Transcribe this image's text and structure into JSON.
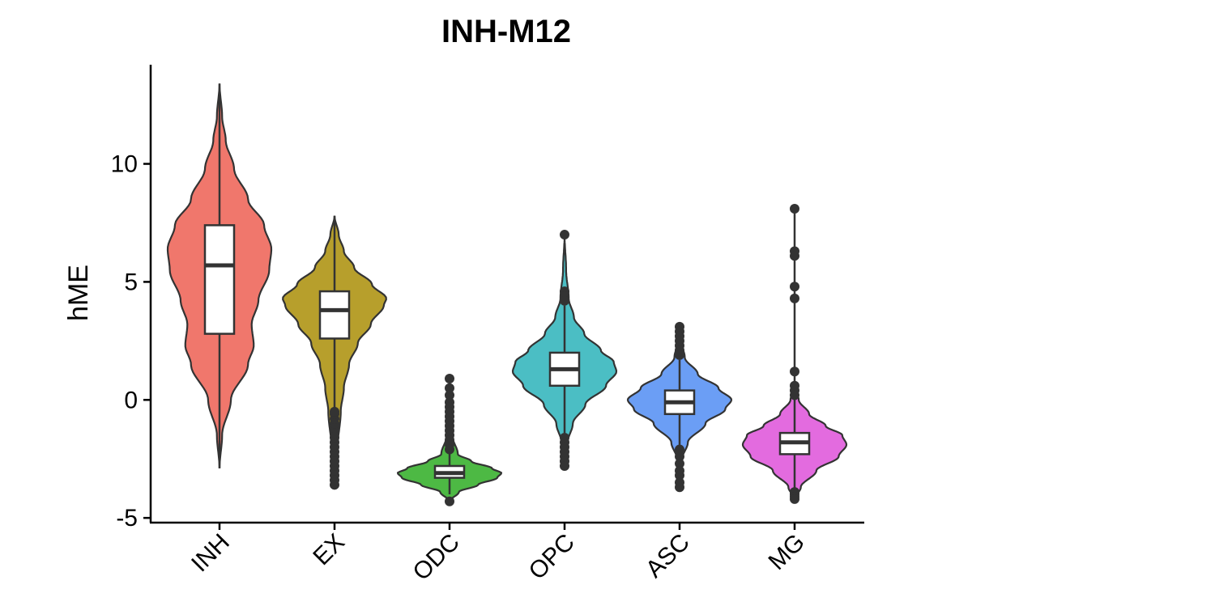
{
  "chart_data": {
    "type": "violin",
    "title": "INH-M12",
    "xlabel": "",
    "ylabel": "hME",
    "ylim": [
      -5.2,
      14.2
    ],
    "yticks": [
      -5,
      0,
      5,
      10
    ],
    "grid": false,
    "legend": "none",
    "categories": [
      "INH",
      "EX",
      "ODC",
      "OPC",
      "ASC",
      "MG"
    ],
    "colors": [
      "#F0776C",
      "#B79F2C",
      "#4DB944",
      "#4BBEC4",
      "#6B9EF5",
      "#E36BDF"
    ],
    "series": [
      {
        "category": "INH",
        "box": {
          "q1": 2.8,
          "median": 5.7,
          "q3": 7.4,
          "whisker_low": -2.9,
          "whisker_high": 13.4
        },
        "density_y": [
          -2.9,
          -1.5,
          0.0,
          1.5,
          2.3,
          3.2,
          4.2,
          5.5,
          6.4,
          7.4,
          8.5,
          9.8,
          11.0,
          12.0,
          13.4
        ],
        "density_w": [
          0.0,
          0.05,
          0.22,
          0.55,
          0.66,
          0.62,
          0.75,
          0.96,
          1.0,
          0.86,
          0.55,
          0.28,
          0.12,
          0.05,
          0.0
        ],
        "outliers": []
      },
      {
        "category": "EX",
        "box": {
          "q1": 2.6,
          "median": 3.8,
          "q3": 4.6,
          "whisker_low": -0.4,
          "whisker_high": 7.8
        },
        "density_y": [
          -3.7,
          -2.0,
          -0.5,
          0.5,
          1.5,
          2.4,
          3.2,
          4.0,
          4.3,
          4.9,
          5.6,
          6.3,
          7.0,
          7.8
        ],
        "density_w": [
          0.0,
          0.06,
          0.12,
          0.18,
          0.28,
          0.45,
          0.7,
          0.95,
          1.0,
          0.72,
          0.38,
          0.18,
          0.08,
          0.0
        ],
        "outliers": [
          -3.6,
          -3.4,
          -3.2,
          -3.0,
          -2.8,
          -2.6,
          -2.4,
          -2.2,
          -2.0,
          -1.8,
          -1.6,
          -1.4,
          -1.2,
          -1.0,
          -0.8,
          -0.6,
          -0.5
        ]
      },
      {
        "category": "ODC",
        "box": {
          "q1": -3.3,
          "median": -3.1,
          "q3": -2.8,
          "whisker_low": -4.0,
          "whisker_high": -2.2
        },
        "density_y": [
          -4.3,
          -3.9,
          -3.6,
          -3.3,
          -3.1,
          -2.9,
          -2.6,
          -2.3,
          -1.5,
          0.0,
          0.9
        ],
        "density_w": [
          0.0,
          0.18,
          0.55,
          0.92,
          1.0,
          0.82,
          0.42,
          0.16,
          0.05,
          0.02,
          0.0
        ],
        "outliers": [
          -4.3,
          0.9,
          0.5,
          0.2,
          -0.1,
          -0.3,
          -0.5,
          -0.7,
          -0.9,
          -1.1,
          -1.3,
          -1.5,
          -1.7,
          -1.9,
          -2.1
        ]
      },
      {
        "category": "OPC",
        "box": {
          "q1": 0.6,
          "median": 1.3,
          "q3": 2.0,
          "whisker_low": -1.4,
          "whisker_high": 4.0
        },
        "density_y": [
          -2.9,
          -1.8,
          -1.0,
          -0.2,
          0.6,
          1.2,
          1.6,
          2.1,
          2.8,
          3.5,
          4.3,
          5.5,
          7.0
        ],
        "density_w": [
          0.0,
          0.06,
          0.16,
          0.4,
          0.8,
          1.0,
          0.95,
          0.7,
          0.38,
          0.18,
          0.08,
          0.03,
          0.0
        ],
        "outliers": [
          7.0,
          4.6,
          4.4,
          4.2,
          -1.6,
          -1.8,
          -2.0,
          -2.2,
          -2.4,
          -2.6,
          -2.8
        ]
      },
      {
        "category": "ASC",
        "box": {
          "q1": -0.6,
          "median": -0.1,
          "q3": 0.4,
          "whisker_low": -1.9,
          "whisker_high": 1.7
        },
        "density_y": [
          -3.8,
          -2.5,
          -1.8,
          -1.0,
          -0.4,
          0.0,
          0.5,
          1.1,
          1.8,
          2.5,
          3.2
        ],
        "density_w": [
          0.0,
          0.05,
          0.16,
          0.5,
          0.88,
          1.0,
          0.75,
          0.35,
          0.1,
          0.03,
          0.0
        ],
        "outliers": [
          3.1,
          2.9,
          2.7,
          2.5,
          2.3,
          2.1,
          1.9,
          -2.1,
          -2.4,
          -2.7,
          -3.0,
          -3.2,
          -3.5,
          -3.7
        ]
      },
      {
        "category": "MG",
        "box": {
          "q1": -2.3,
          "median": -1.8,
          "q3": -1.4,
          "whisker_low": -3.9,
          "whisker_high": 8.1
        },
        "density_y": [
          -4.2,
          -3.7,
          -3.0,
          -2.4,
          -1.9,
          -1.5,
          -1.1,
          -0.6,
          0.0,
          0.5
        ],
        "density_w": [
          0.0,
          0.12,
          0.42,
          0.85,
          1.0,
          0.92,
          0.6,
          0.28,
          0.08,
          0.0
        ],
        "outliers": [
          8.1,
          6.3,
          6.1,
          4.8,
          4.3,
          1.2,
          0.6,
          0.4,
          0.2,
          -3.9,
          -4.0,
          -4.1,
          -4.2
        ]
      }
    ]
  }
}
